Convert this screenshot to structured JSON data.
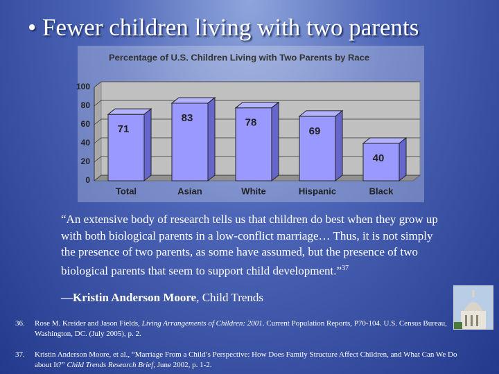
{
  "slide": {
    "title": "• Fewer children living with two parents",
    "quote": "“An extensive body of research tells us that children do best when they grow up with both biological parents in a low-conflict marriage… Thus, it is not simply the presence of two parents, as some have assumed, but the presence of two biological parents that seem to support child development.”",
    "quote_note": "37",
    "attribution_name": "—Kristin Anderson Moore",
    "attribution_rest": ", Child Trends",
    "footnotes": [
      {
        "number": "36.",
        "before": "Rose M. Kreider and Jason Fields, ",
        "italic": "Living Arrangements of Children: 2001",
        "after": ". Current Population Reports, P70-104. U.S. Census Bureau, Washington, DC. (July 2005), p. 2."
      },
      {
        "number": "37.",
        "before": "Kristin Anderson Moore, et al., “Marriage From a Child’s Perspective: How Does Family Structure Affect Children, and What Can We Do about It?” ",
        "italic": "Child Trends Research Brief",
        "after": ", June 2002, p. 1-2."
      }
    ]
  },
  "chart_data": {
    "type": "bar",
    "title": "Percentage of U.S. Children Living with Two Parents by Race",
    "categories": [
      "Total",
      "Asian",
      "White",
      "Hispanic",
      "Black"
    ],
    "values": [
      71,
      83,
      78,
      69,
      40
    ],
    "color": "#9999ff",
    "ylim": [
      0,
      100
    ],
    "yticks": [
      0,
      20,
      40,
      60,
      80,
      100
    ],
    "grid": true
  }
}
